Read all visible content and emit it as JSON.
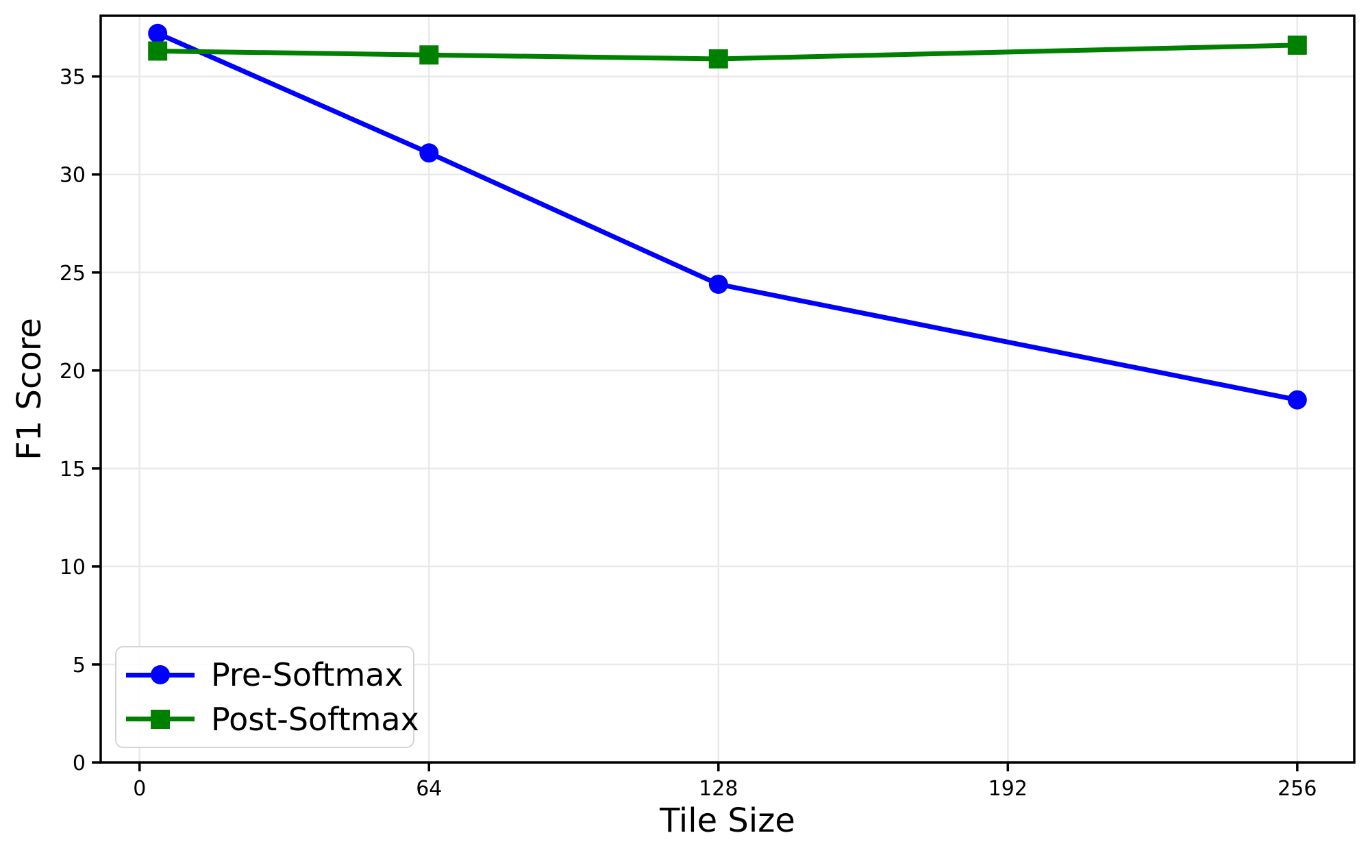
{
  "chart_data": {
    "type": "line",
    "title": "",
    "xlabel": "Tile Size",
    "ylabel": "F1 Score",
    "x": [
      4,
      64,
      128,
      256
    ],
    "series": [
      {
        "name": "Pre-Softmax",
        "color": "#0000ff",
        "marker": "circle",
        "values": [
          37.2,
          31.1,
          24.4,
          18.5
        ]
      },
      {
        "name": "Post-Softmax",
        "color": "#008000",
        "marker": "square",
        "values": [
          36.3,
          36.1,
          35.9,
          36.6
        ]
      }
    ],
    "xticks": [
      0,
      64,
      128,
      192,
      256
    ],
    "yticks": [
      0,
      5,
      10,
      15,
      20,
      25,
      30,
      35
    ],
    "xlim": [
      -8.6,
      268.6
    ],
    "ylim": [
      0,
      38.1
    ],
    "grid": true,
    "grid_color": "#e9e9e9",
    "spine_color": "#000000",
    "legend_position": "lower left"
  }
}
